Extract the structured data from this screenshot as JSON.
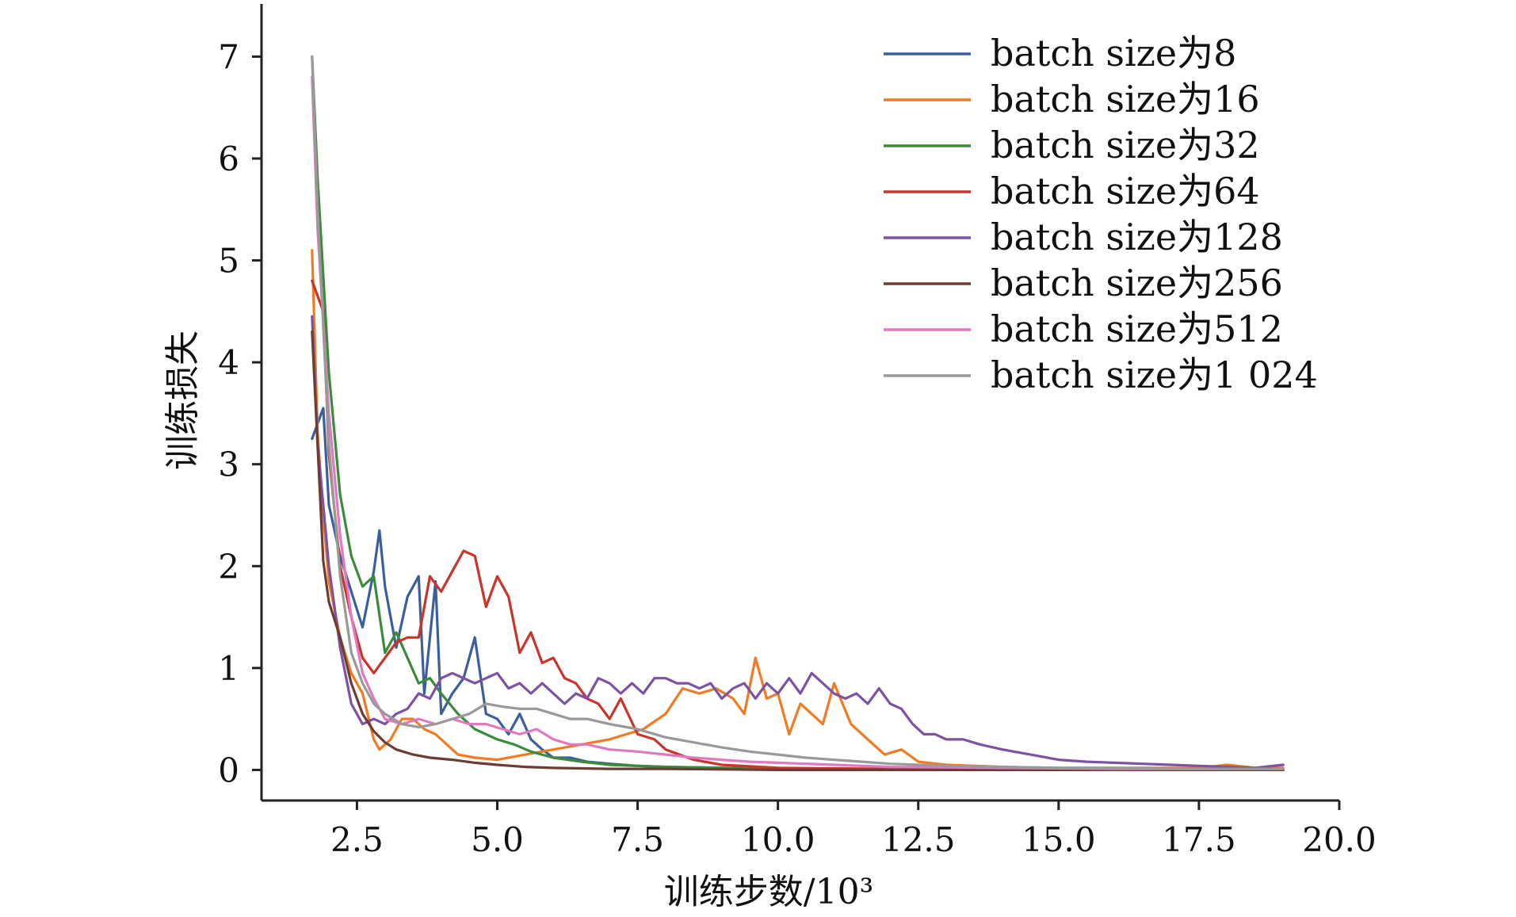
{
  "chart_data": {
    "type": "line",
    "title": "",
    "xlabel": "训练步数/10³",
    "ylabel": "训练损失",
    "xlim": [
      0.8,
      20.0
    ],
    "ylim": [
      -0.3,
      7.4
    ],
    "xticks": [
      2.5,
      5.0,
      7.5,
      10.0,
      12.5,
      15.0,
      17.5,
      20.0
    ],
    "xtick_labels": [
      "2.5",
      "5.0",
      "7.5",
      "10.0",
      "12.5",
      "15.0",
      "17.5",
      "20.0"
    ],
    "yticks": [
      0,
      1,
      2,
      3,
      4,
      5,
      6,
      7
    ],
    "ytick_labels": [
      "0",
      "1",
      "2",
      "3",
      "4",
      "5",
      "6",
      "7"
    ],
    "grid": false,
    "legend_position": "top-right",
    "series": [
      {
        "name": "batch size为8",
        "color": "#3b5f9e",
        "x": [
          1.7,
          1.9,
          2.0,
          2.2,
          2.4,
          2.6,
          2.8,
          2.9,
          3.0,
          3.2,
          3.4,
          3.6,
          3.7,
          3.9,
          4.0,
          4.2,
          4.4,
          4.6,
          4.8,
          5.0,
          5.2,
          5.4,
          5.6,
          5.8,
          6.0,
          6.3,
          6.6,
          7.0,
          7.5,
          8.0,
          9.0,
          10.0,
          12.0,
          19.0
        ],
        "y": [
          3.25,
          3.55,
          2.6,
          2.1,
          1.75,
          1.4,
          1.95,
          2.35,
          1.8,
          1.2,
          1.7,
          1.9,
          0.75,
          1.85,
          0.55,
          0.75,
          0.9,
          1.3,
          0.55,
          0.5,
          0.35,
          0.55,
          0.3,
          0.2,
          0.12,
          0.12,
          0.08,
          0.06,
          0.04,
          0.03,
          0.02,
          0.01,
          0.01,
          0.0
        ]
      },
      {
        "name": "batch size为16",
        "color": "#f07b22",
        "x": [
          1.7,
          1.8,
          1.9,
          2.0,
          2.2,
          2.4,
          2.6,
          2.8,
          2.9,
          3.1,
          3.3,
          3.5,
          3.7,
          3.9,
          4.1,
          4.3,
          4.6,
          5.0,
          5.5,
          6.0,
          6.5,
          7.0,
          7.3,
          7.6,
          8.0,
          8.3,
          8.6,
          8.9,
          9.2,
          9.4,
          9.6,
          9.8,
          10.0,
          10.2,
          10.4,
          10.6,
          10.8,
          11.0,
          11.3,
          11.6,
          11.9,
          12.2,
          12.5,
          13.0,
          14.0,
          15.0,
          16.5,
          17.5,
          18.0,
          18.5,
          19.0
        ],
        "y": [
          5.1,
          3.3,
          2.5,
          1.85,
          1.3,
          0.95,
          0.75,
          0.3,
          0.2,
          0.3,
          0.5,
          0.5,
          0.4,
          0.35,
          0.25,
          0.15,
          0.12,
          0.1,
          0.15,
          0.2,
          0.25,
          0.3,
          0.35,
          0.4,
          0.55,
          0.8,
          0.75,
          0.8,
          0.7,
          0.55,
          1.1,
          0.7,
          0.75,
          0.35,
          0.65,
          0.55,
          0.45,
          0.85,
          0.45,
          0.3,
          0.15,
          0.2,
          0.08,
          0.05,
          0.03,
          0.02,
          0.02,
          0.02,
          0.05,
          0.02,
          0.02
        ]
      },
      {
        "name": "batch size为32",
        "color": "#3a8c3a",
        "x": [
          1.7,
          1.8,
          2.0,
          2.2,
          2.4,
          2.6,
          2.8,
          3.0,
          3.2,
          3.4,
          3.6,
          3.8,
          4.0,
          4.3,
          4.6,
          5.0,
          5.3,
          5.6,
          6.0,
          6.5,
          7.0,
          8.0,
          9.0,
          10.0,
          12.0,
          15.0,
          19.0
        ],
        "y": [
          7.0,
          5.8,
          3.9,
          2.7,
          2.1,
          1.8,
          1.9,
          1.15,
          1.35,
          1.1,
          0.85,
          0.9,
          0.75,
          0.55,
          0.4,
          0.3,
          0.25,
          0.18,
          0.12,
          0.08,
          0.05,
          0.03,
          0.02,
          0.01,
          0.01,
          0.0,
          0.0
        ]
      },
      {
        "name": "batch size为64",
        "color": "#c8352b",
        "x": [
          1.7,
          1.9,
          2.0,
          2.2,
          2.4,
          2.6,
          2.8,
          3.0,
          3.2,
          3.4,
          3.6,
          3.8,
          4.0,
          4.2,
          4.4,
          4.6,
          4.8,
          5.0,
          5.2,
          5.4,
          5.6,
          5.8,
          6.0,
          6.2,
          6.4,
          6.6,
          6.8,
          7.0,
          7.2,
          7.5,
          7.8,
          8.0,
          8.5,
          9.0,
          10.0,
          12.0,
          15.0,
          19.0
        ],
        "y": [
          4.8,
          4.5,
          3.1,
          2.0,
          1.5,
          1.1,
          0.95,
          1.1,
          1.25,
          1.3,
          1.3,
          1.9,
          1.75,
          1.95,
          2.15,
          2.1,
          1.6,
          1.9,
          1.7,
          1.15,
          1.35,
          1.05,
          1.1,
          0.9,
          0.85,
          0.7,
          0.65,
          0.5,
          0.7,
          0.35,
          0.3,
          0.2,
          0.1,
          0.05,
          0.02,
          0.01,
          0.0,
          0.0
        ]
      },
      {
        "name": "batch size为128",
        "color": "#7d52a3",
        "x": [
          1.7,
          1.8,
          2.0,
          2.2,
          2.4,
          2.6,
          2.8,
          3.0,
          3.2,
          3.4,
          3.6,
          3.8,
          4.0,
          4.2,
          4.4,
          4.6,
          4.8,
          5.0,
          5.2,
          5.4,
          5.6,
          5.8,
          6.0,
          6.2,
          6.4,
          6.6,
          6.8,
          7.0,
          7.2,
          7.4,
          7.6,
          7.8,
          8.0,
          8.2,
          8.4,
          8.6,
          8.8,
          9.0,
          9.2,
          9.4,
          9.6,
          9.8,
          10.0,
          10.2,
          10.4,
          10.6,
          10.8,
          11.0,
          11.2,
          11.4,
          11.6,
          11.8,
          12.0,
          12.2,
          12.4,
          12.6,
          12.8,
          13.0,
          13.3,
          13.6,
          14.0,
          14.5,
          15.0,
          15.5,
          16.0,
          16.5,
          17.0,
          17.5,
          18.0,
          18.5,
          19.0
        ],
        "y": [
          4.45,
          3.2,
          2.0,
          1.2,
          0.65,
          0.45,
          0.5,
          0.45,
          0.55,
          0.6,
          0.75,
          0.7,
          0.9,
          0.95,
          0.9,
          0.85,
          0.9,
          0.95,
          0.8,
          0.85,
          0.75,
          0.85,
          0.75,
          0.65,
          0.75,
          0.7,
          0.9,
          0.85,
          0.75,
          0.85,
          0.75,
          0.9,
          0.9,
          0.85,
          0.85,
          0.8,
          0.85,
          0.7,
          0.8,
          0.85,
          0.7,
          0.85,
          0.75,
          0.9,
          0.75,
          0.95,
          0.85,
          0.75,
          0.7,
          0.75,
          0.65,
          0.8,
          0.65,
          0.6,
          0.45,
          0.35,
          0.35,
          0.3,
          0.3,
          0.25,
          0.2,
          0.15,
          0.1,
          0.08,
          0.07,
          0.06,
          0.05,
          0.04,
          0.03,
          0.02,
          0.05
        ]
      },
      {
        "name": "batch size为256",
        "color": "#6b3d35",
        "x": [
          1.7,
          1.9,
          2.0,
          2.2,
          2.4,
          2.6,
          2.8,
          3.0,
          3.2,
          3.5,
          3.8,
          4.2,
          4.6,
          5.0,
          5.5,
          6.0,
          7.0,
          8.0,
          10.0,
          13.0,
          19.0
        ],
        "y": [
          4.3,
          2.05,
          1.65,
          1.3,
          0.85,
          0.55,
          0.38,
          0.27,
          0.2,
          0.15,
          0.12,
          0.1,
          0.07,
          0.05,
          0.03,
          0.02,
          0.01,
          0.01,
          0.0,
          0.0,
          0.0
        ]
      },
      {
        "name": "batch size为512",
        "color": "#e07ac0",
        "x": [
          1.7,
          1.8,
          2.0,
          2.2,
          2.4,
          2.6,
          2.8,
          3.0,
          3.3,
          3.6,
          3.9,
          4.2,
          4.5,
          4.8,
          5.1,
          5.4,
          5.7,
          6.0,
          6.3,
          6.6,
          7.0,
          7.5,
          8.0,
          8.5,
          9.0,
          9.5,
          10.0,
          11.0,
          12.0,
          14.0,
          16.0,
          19.0
        ],
        "y": [
          6.8,
          5.3,
          3.5,
          2.3,
          1.5,
          0.95,
          0.7,
          0.5,
          0.45,
          0.5,
          0.45,
          0.5,
          0.45,
          0.45,
          0.4,
          0.35,
          0.4,
          0.3,
          0.25,
          0.25,
          0.2,
          0.18,
          0.15,
          0.12,
          0.1,
          0.08,
          0.07,
          0.05,
          0.03,
          0.02,
          0.01,
          0.01
        ]
      },
      {
        "name": "batch size为1 024",
        "color": "#999999",
        "x": [
          1.7,
          1.8,
          2.0,
          2.2,
          2.4,
          2.6,
          2.8,
          3.0,
          3.3,
          3.6,
          3.9,
          4.2,
          4.5,
          4.8,
          5.1,
          5.4,
          5.7,
          6.0,
          6.3,
          6.6,
          7.0,
          7.5,
          8.0,
          8.5,
          9.0,
          9.5,
          10.0,
          10.5,
          11.0,
          11.5,
          12.0,
          12.5,
          13.0,
          14.0,
          15.0,
          16.0,
          17.0,
          18.0,
          19.0
        ],
        "y": [
          7.0,
          5.5,
          3.2,
          1.9,
          1.15,
          0.85,
          0.65,
          0.55,
          0.45,
          0.42,
          0.45,
          0.5,
          0.55,
          0.65,
          0.62,
          0.6,
          0.6,
          0.55,
          0.5,
          0.5,
          0.45,
          0.4,
          0.32,
          0.27,
          0.22,
          0.18,
          0.15,
          0.12,
          0.1,
          0.08,
          0.06,
          0.05,
          0.04,
          0.03,
          0.02,
          0.02,
          0.01,
          0.01,
          0.01
        ]
      }
    ]
  }
}
